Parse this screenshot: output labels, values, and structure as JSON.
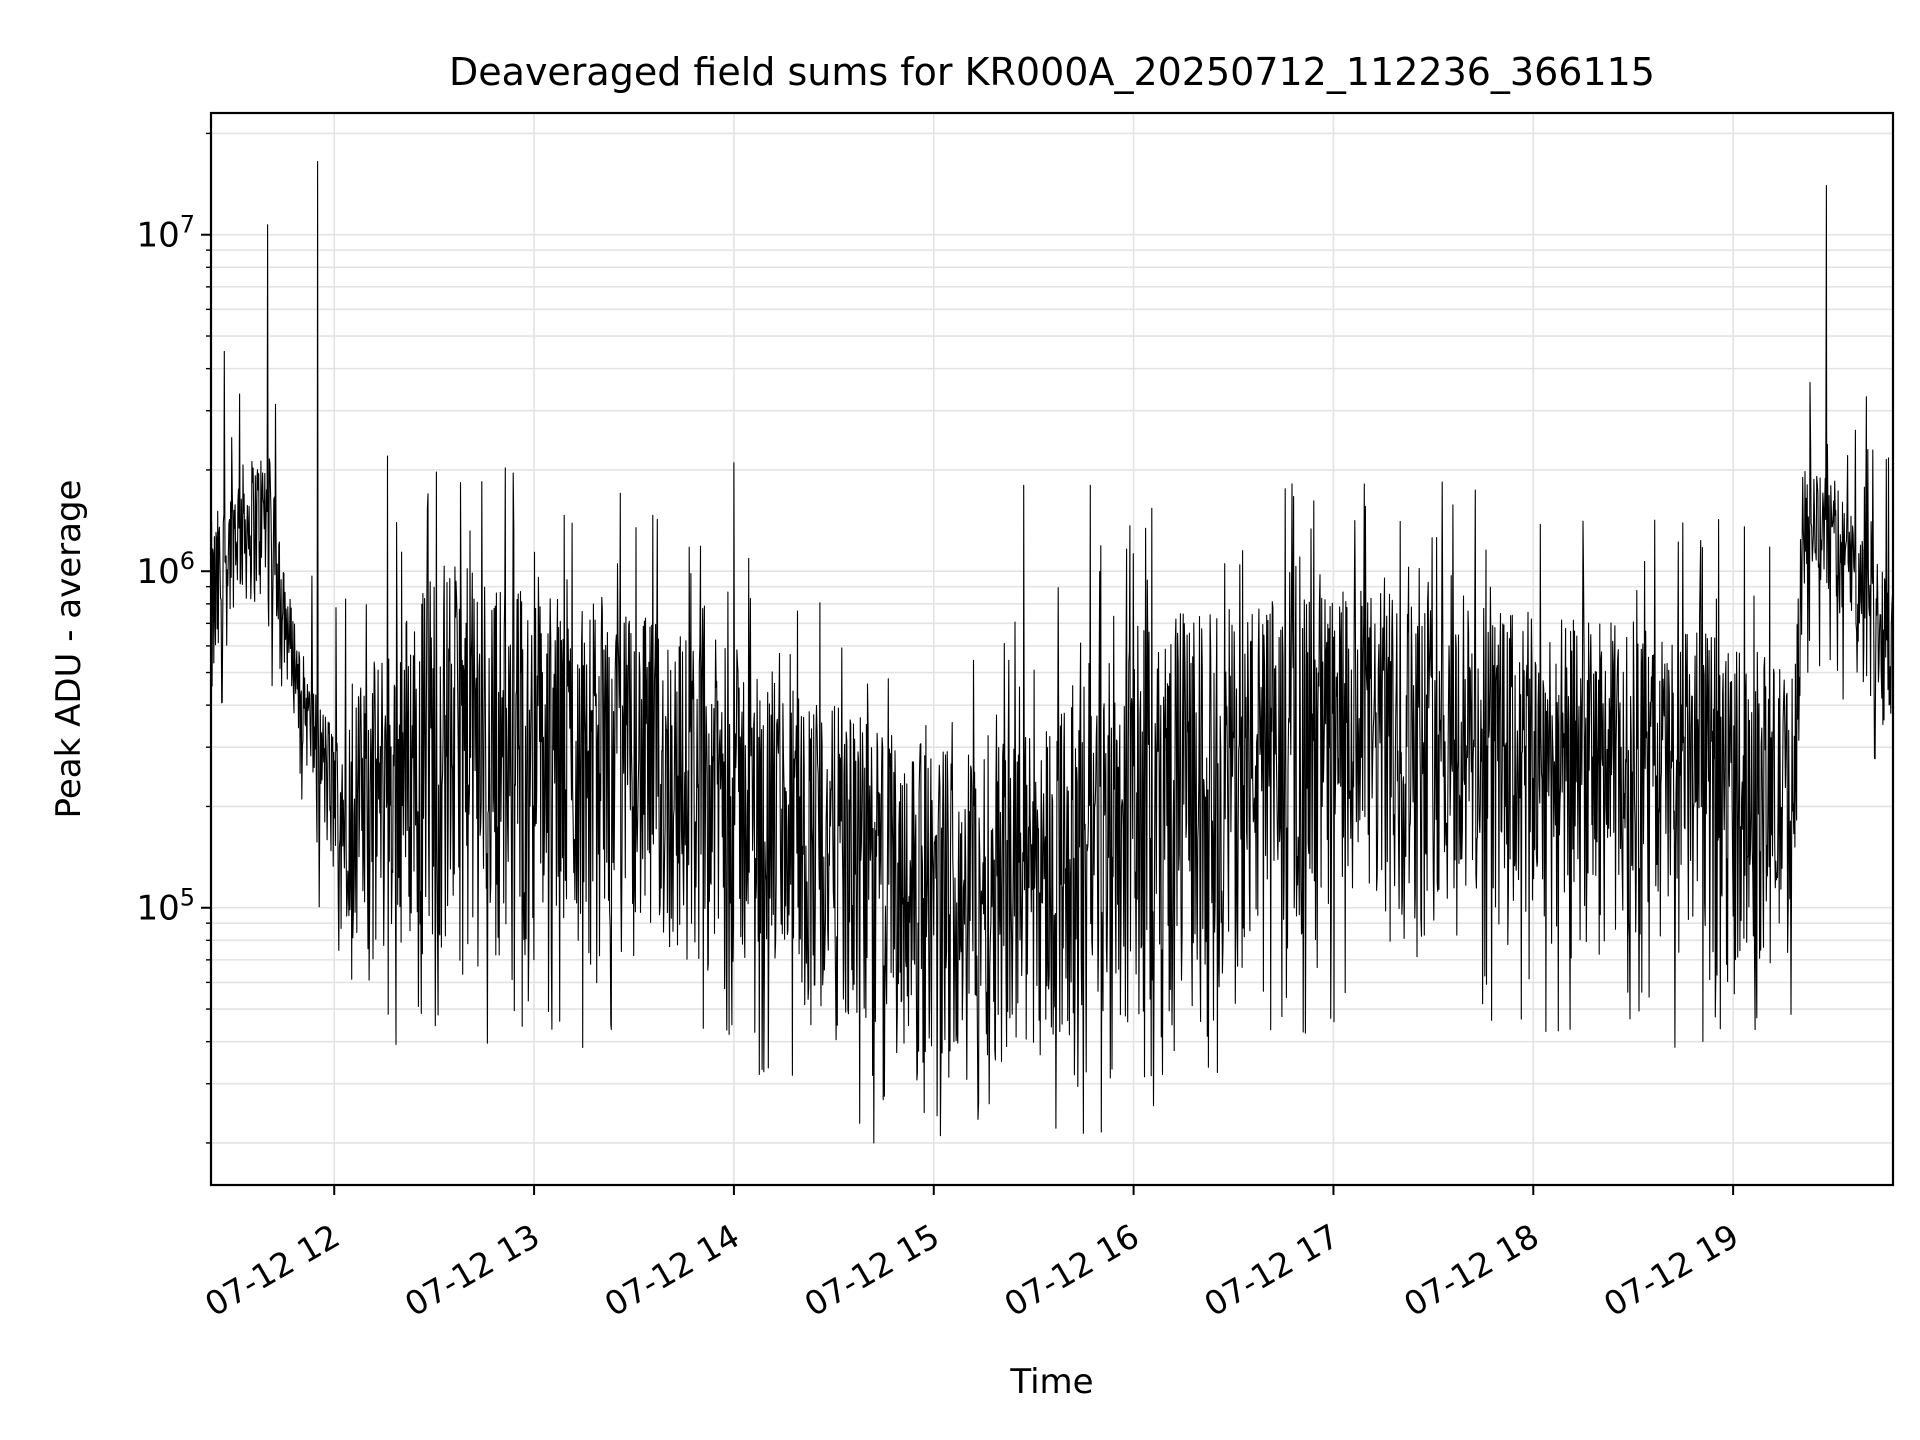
{
  "chart_data": {
    "type": "line",
    "title": "Deaveraged field sums for KR000A_20250712_112236_366115",
    "xlabel": "Time",
    "ylabel": "Peak ADU - average",
    "y_scale": "log",
    "ylim": [
      15000,
      23000000
    ],
    "xlim": [
      "2025-07-12T11:23",
      "2025-07-12T19:48"
    ],
    "grid": true,
    "x_tick_labels": [
      "07-12 12",
      "07-12 13",
      "07-12 14",
      "07-12 15",
      "07-12 16",
      "07-12 17",
      "07-12 18",
      "07-12 19"
    ],
    "x_tick_values": [
      "2025-07-12T12:00",
      "2025-07-12T13:00",
      "2025-07-12T14:00",
      "2025-07-12T15:00",
      "2025-07-12T16:00",
      "2025-07-12T17:00",
      "2025-07-12T18:00",
      "2025-07-12T19:00"
    ],
    "y_tick_labels": [
      {
        "base": "10",
        "exp": "5",
        "value": 100000
      },
      {
        "base": "10",
        "exp": "6",
        "value": 1000000
      },
      {
        "base": "10",
        "exp": "7",
        "value": 10000000
      }
    ],
    "series": [
      {
        "color": "#000000",
        "envelope": [
          {
            "t": "2025-07-12T11:23",
            "lo": 300000,
            "hi": 1400000
          },
          {
            "t": "2025-07-12T11:30",
            "lo": 800000,
            "hi": 2000000
          },
          {
            "t": "2025-07-12T11:40",
            "lo": 750000,
            "hi": 2400000
          },
          {
            "t": "2025-07-12T11:45",
            "lo": 500000,
            "hi": 1000000
          },
          {
            "t": "2025-07-12T11:52",
            "lo": 250000,
            "hi": 500000
          },
          {
            "t": "2025-07-12T12:00",
            "lo": 110000,
            "hi": 350000
          },
          {
            "t": "2025-07-12T12:10",
            "lo": 65000,
            "hi": 500000
          },
          {
            "t": "2025-07-12T12:30",
            "lo": 70000,
            "hi": 1100000
          },
          {
            "t": "2025-07-12T13:00",
            "lo": 65000,
            "hi": 900000
          },
          {
            "t": "2025-07-12T13:30",
            "lo": 70000,
            "hi": 750000
          },
          {
            "t": "2025-07-12T14:00",
            "lo": 60000,
            "hi": 600000
          },
          {
            "t": "2025-07-12T14:30",
            "lo": 40000,
            "hi": 400000
          },
          {
            "t": "2025-07-12T15:00",
            "lo": 35000,
            "hi": 300000
          },
          {
            "t": "2025-07-12T15:30",
            "lo": 35000,
            "hi": 350000
          },
          {
            "t": "2025-07-12T16:00",
            "lo": 40000,
            "hi": 700000
          },
          {
            "t": "2025-07-12T16:30",
            "lo": 60000,
            "hi": 800000
          },
          {
            "t": "2025-07-12T17:00",
            "lo": 80000,
            "hi": 900000
          },
          {
            "t": "2025-07-12T17:30",
            "lo": 90000,
            "hi": 850000
          },
          {
            "t": "2025-07-12T18:00",
            "lo": 75000,
            "hi": 750000
          },
          {
            "t": "2025-07-12T18:30",
            "lo": 70000,
            "hi": 700000
          },
          {
            "t": "2025-07-12T19:00",
            "lo": 65000,
            "hi": 650000
          },
          {
            "t": "2025-07-12T19:18",
            "lo": 70000,
            "hi": 500000
          },
          {
            "t": "2025-07-12T19:21",
            "lo": 900000,
            "hi": 2000000
          },
          {
            "t": "2025-07-12T19:30",
            "lo": 800000,
            "hi": 1900000
          },
          {
            "t": "2025-07-12T19:40",
            "lo": 500000,
            "hi": 1300000
          },
          {
            "t": "2025-07-12T19:48",
            "lo": 280000,
            "hi": 1000000
          }
        ],
        "spikes": [
          {
            "t": "2025-07-12T11:27",
            "value": 4500000
          },
          {
            "t": "2025-07-12T11:40",
            "value": 10700000
          },
          {
            "t": "2025-07-12T11:55",
            "value": 16500000
          },
          {
            "t": "2025-07-12T12:16",
            "value": 2200000
          },
          {
            "t": "2025-07-12T14:00",
            "value": 2100000
          },
          {
            "t": "2025-07-12T14:42",
            "value": 20000
          },
          {
            "t": "2025-07-12T15:02",
            "value": 21000
          },
          {
            "t": "2025-07-12T15:27",
            "value": 1800000
          },
          {
            "t": "2025-07-12T15:47",
            "value": 1800000
          },
          {
            "t": "2025-07-12T19:28",
            "value": 14000000
          },
          {
            "t": "2025-07-12T19:40",
            "value": 3300000
          }
        ]
      }
    ]
  }
}
